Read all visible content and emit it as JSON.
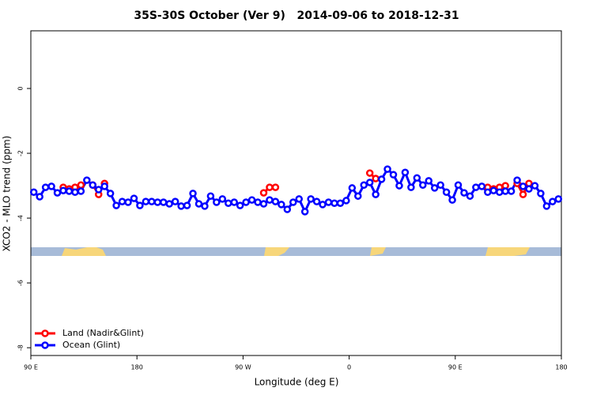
{
  "chart_data": {
    "type": "line",
    "title": "35S-30S October (Ver 9)   2014-09-06 to 2018-12-31",
    "xlabel": "Longitude (deg E)",
    "ylabel": "XCO2 - MLO trend (ppm)",
    "xlim": [
      90,
      540
    ],
    "xticks": [
      {
        "value": 90,
        "label": "90 E"
      },
      {
        "value": 180,
        "label": "180"
      },
      {
        "value": 270,
        "label": "90 W"
      },
      {
        "value": 360,
        "label": "0"
      },
      {
        "value": 450,
        "label": "90 E"
      },
      {
        "value": 540,
        "label": "180"
      }
    ],
    "ylim": [
      -8.24,
      1.78
    ],
    "yticks": [
      0,
      -2,
      -4,
      -6,
      -8
    ],
    "legend": "bottom-left",
    "x": [
      92.5,
      97.5,
      102.5,
      107.5,
      112.5,
      117.5,
      122.5,
      127.5,
      132.5,
      137.5,
      142.5,
      147.5,
      152.5,
      157.5,
      162.5,
      167.5,
      172.5,
      177.5,
      182.5,
      187.5,
      192.5,
      197.5,
      202.5,
      207.5,
      212.5,
      217.5,
      222.5,
      227.5,
      232.5,
      237.5,
      242.5,
      247.5,
      252.5,
      257.5,
      262.5,
      267.5,
      272.5,
      277.5,
      282.5,
      287.5,
      292.5,
      297.5,
      302.5,
      307.5,
      312.5,
      317.5,
      322.5,
      327.5,
      332.5,
      337.5,
      342.5,
      347.5,
      352.5,
      357.5,
      362.5,
      367.5,
      372.5,
      377.5,
      382.5,
      387.5,
      392.5,
      397.5,
      402.5,
      407.5,
      412.5,
      417.5,
      422.5,
      427.5,
      432.5,
      437.5,
      442.5,
      447.5,
      452.5,
      457.5,
      462.5,
      467.5,
      472.5,
      477.5,
      482.5,
      487.5,
      492.5,
      497.5,
      502.5,
      507.5,
      512.5,
      517.5,
      522.5,
      527.5,
      532.5,
      537.5
    ],
    "series": [
      {
        "name": "Land (Nadir&Glint)",
        "color": "#ff0000",
        "values": [
          null,
          null,
          null,
          null,
          null,
          -3.05,
          -3.1,
          -3.05,
          -2.98,
          null,
          -2.98,
          -3.27,
          -2.93,
          null,
          null,
          null,
          null,
          null,
          null,
          null,
          null,
          null,
          null,
          null,
          null,
          null,
          null,
          null,
          null,
          null,
          null,
          null,
          null,
          null,
          null,
          null,
          null,
          null,
          null,
          -3.22,
          -3.05,
          -3.05,
          null,
          null,
          null,
          null,
          null,
          null,
          null,
          null,
          null,
          null,
          null,
          null,
          null,
          null,
          null,
          -2.61,
          -2.78,
          null,
          null,
          null,
          null,
          null,
          null,
          null,
          null,
          null,
          null,
          null,
          null,
          null,
          null,
          null,
          null,
          null,
          null,
          -3.05,
          -3.1,
          -3.05,
          -3.0,
          null,
          -2.93,
          -3.27,
          -2.93,
          null,
          null,
          null,
          null,
          null
        ]
      },
      {
        "name": "Ocean (Glint)",
        "color": "#0000ff",
        "values": [
          -3.2,
          -3.34,
          -3.05,
          -3.02,
          -3.22,
          -3.15,
          -3.17,
          -3.2,
          -3.17,
          -2.83,
          -2.98,
          -3.12,
          -3.02,
          -3.24,
          -3.61,
          -3.49,
          -3.51,
          -3.39,
          -3.61,
          -3.49,
          -3.49,
          -3.51,
          -3.51,
          -3.56,
          -3.49,
          -3.63,
          -3.61,
          -3.24,
          -3.56,
          -3.63,
          -3.32,
          -3.51,
          -3.41,
          -3.54,
          -3.51,
          -3.61,
          -3.51,
          -3.44,
          -3.51,
          -3.56,
          -3.44,
          -3.49,
          -3.58,
          -3.73,
          -3.51,
          -3.41,
          -3.8,
          -3.41,
          -3.49,
          -3.58,
          -3.51,
          -3.54,
          -3.54,
          -3.46,
          -3.07,
          -3.32,
          -2.98,
          -2.9,
          -3.27,
          -2.8,
          -2.49,
          -2.66,
          -3.0,
          -2.59,
          -3.05,
          -2.76,
          -2.98,
          -2.85,
          -3.07,
          -2.98,
          -3.2,
          -3.44,
          -2.98,
          -3.22,
          -3.32,
          -3.05,
          -3.02,
          -3.2,
          -3.15,
          -3.2,
          -3.17,
          -3.17,
          -2.83,
          -3.02,
          -3.1,
          -3.0,
          -3.24,
          -3.63,
          -3.49,
          -3.41
        ]
      }
    ]
  }
}
